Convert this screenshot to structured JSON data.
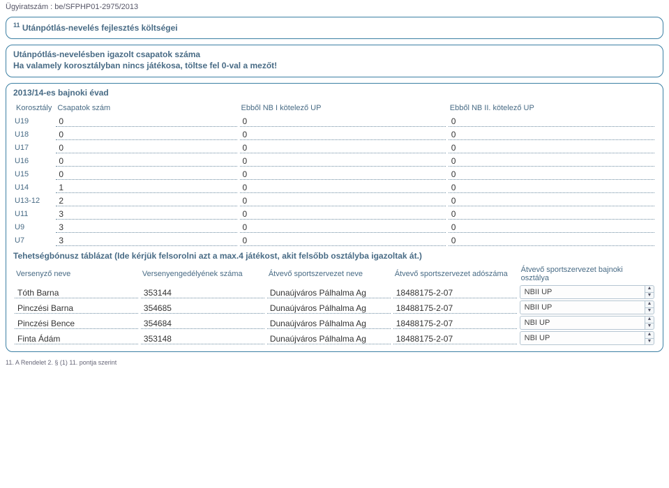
{
  "colors": {
    "border": "#3b7fa3",
    "heading": "#486b85",
    "dotted": "#6b8aa0"
  },
  "doc_number": "Ügyiratszám : be/SFPHP01-2975/2013",
  "section_title_sup": "11",
  "section_title": "Utánpótlás-nevelés fejlesztés költségei",
  "instructions_line1": "Utánpótlás-nevelésben igazolt csapatok száma",
  "instructions_line2": "Ha valamely korosztályban nincs játékosa, töltse fel 0-val a mezőt!",
  "season_title": "2013/14-es bajnoki évad",
  "age_table": {
    "headers": {
      "korosztaly": "Korosztály",
      "csapatok": "Csapatok szám",
      "nb1": "Ebből NB I kötelező UP",
      "nb2": "Ebből NB II. kötelező UP"
    },
    "rows": [
      {
        "label": "U19",
        "csapatok": "0",
        "nb1": "0",
        "nb2": "0"
      },
      {
        "label": "U18",
        "csapatok": "0",
        "nb1": "0",
        "nb2": "0"
      },
      {
        "label": "U17",
        "csapatok": "0",
        "nb1": "0",
        "nb2": "0"
      },
      {
        "label": "U16",
        "csapatok": "0",
        "nb1": "0",
        "nb2": "0"
      },
      {
        "label": "U15",
        "csapatok": "0",
        "nb1": "0",
        "nb2": "0"
      },
      {
        "label": "U14",
        "csapatok": "1",
        "nb1": "0",
        "nb2": "0"
      },
      {
        "label": "U13-12",
        "csapatok": "2",
        "nb1": "0",
        "nb2": "0"
      },
      {
        "label": "U11",
        "csapatok": "3",
        "nb1": "0",
        "nb2": "0"
      },
      {
        "label": "U9",
        "csapatok": "3",
        "nb1": "0",
        "nb2": "0"
      },
      {
        "label": "U7",
        "csapatok": "3",
        "nb1": "0",
        "nb2": "0"
      }
    ]
  },
  "bonus_title": "Tehetségbónusz táblázat (Ide kérjük felsorolni azt a max.4 játékost, akit felsőbb osztályba igazoltak át.)",
  "bonus_table": {
    "headers": {
      "name": "Versenyző neve",
      "license": "Versenyengedélyének száma",
      "org": "Átvevő sportszervezet neve",
      "tax": "Átvevő sportszervezet adószáma",
      "class": "Átvevő sportszervezet bajnoki osztálya"
    },
    "rows": [
      {
        "name": "Tóth Barna",
        "license": "353144",
        "org": "Dunaújváros Pálhalma Ag",
        "tax": "18488175-2-07",
        "class": "NBII UP"
      },
      {
        "name": "Pinczési Barna",
        "license": "354685",
        "org": "Dunaújváros Pálhalma Ag",
        "tax": "18488175-2-07",
        "class": "NBII UP"
      },
      {
        "name": "Pinczési Bence",
        "license": "354684",
        "org": "Dunaújváros Pálhalma Ag",
        "tax": "18488175-2-07",
        "class": "NBI UP"
      },
      {
        "name": "Finta Ádám",
        "license": "353148",
        "org": "Dunaújváros Pálhalma Ag",
        "tax": "18488175-2-07",
        "class": "NBI UP"
      }
    ]
  },
  "footnote": "11. A Rendelet 2. § (1) 11. pontja szerint"
}
